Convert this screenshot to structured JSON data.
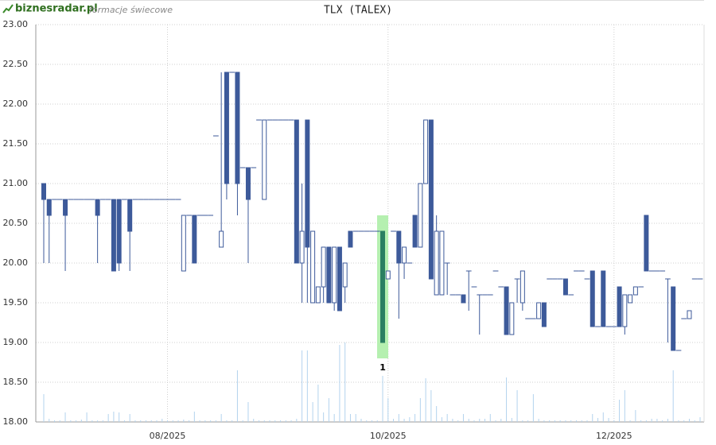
{
  "header": {
    "logo": "biznesradar.pl",
    "section": "formacje świecowe"
  },
  "chart_data": {
    "type": "candlestick",
    "title": "TLX (TALEX)",
    "ylim": [
      18,
      23
    ],
    "yticks": [
      {
        "value": 18,
        "label": "18.00"
      },
      {
        "value": 18.5,
        "label": "18.50"
      },
      {
        "value": 19,
        "label": "19.00"
      },
      {
        "value": 19.5,
        "label": "19.50"
      },
      {
        "value": 20,
        "label": "20.00"
      },
      {
        "value": 20.5,
        "label": "20.50"
      },
      {
        "value": 21,
        "label": "21.00"
      },
      {
        "value": 21.5,
        "label": "21.50"
      },
      {
        "value": 22,
        "label": "22.00"
      },
      {
        "value": 22.5,
        "label": "22.50"
      },
      {
        "value": 23,
        "label": "23.00"
      }
    ],
    "grid": true,
    "up_color": "#ffffff",
    "down_color": "#3d5a9a",
    "volume_color": "#b3d3ee",
    "categories": [
      null,
      null,
      null,
      null,
      null,
      null,
      null,
      null,
      null,
      null,
      null,
      null,
      null,
      null,
      null,
      null,
      null,
      null,
      null,
      null,
      null,
      null,
      null,
      "08/2025",
      null,
      null,
      null,
      null,
      null,
      null,
      null,
      null,
      null,
      null,
      null,
      null,
      null,
      null,
      null,
      null,
      null,
      null,
      null,
      null,
      null,
      null,
      null,
      null,
      null,
      null,
      null,
      null,
      null,
      null,
      null,
      null,
      null,
      null,
      null,
      null,
      null,
      null,
      null,
      null,
      "10/2025",
      null,
      null,
      null,
      null,
      null,
      null,
      null,
      null,
      null,
      null,
      null,
      null,
      null,
      null,
      null,
      null,
      null,
      null,
      null,
      null,
      null,
      null,
      null,
      null,
      null,
      null,
      null,
      null,
      null,
      null,
      null,
      null,
      null,
      null,
      null,
      null,
      null,
      null,
      null,
      null,
      null,
      "12/2025",
      null,
      null,
      null,
      null,
      null,
      null,
      null,
      null,
      null,
      null,
      null,
      null,
      null,
      null,
      null,
      null
    ],
    "values": [
      [
        21.0,
        21.0,
        20.0,
        20.8
      ],
      [
        20.8,
        20.8,
        20.0,
        20.6
      ],
      [
        20.8,
        20.8,
        20.8,
        20.8
      ],
      [
        20.8,
        20.8,
        20.8,
        20.8
      ],
      [
        20.8,
        20.8,
        19.9,
        20.6
      ],
      [
        20.8,
        20.8,
        20.8,
        20.8
      ],
      [
        20.8,
        20.8,
        20.8,
        20.8
      ],
      [
        20.8,
        20.8,
        20.8,
        20.8
      ],
      [
        20.8,
        20.8,
        20.8,
        20.8
      ],
      [
        20.8,
        20.8,
        20.8,
        20.8
      ],
      [
        20.8,
        20.8,
        20.0,
        20.6
      ],
      [
        20.8,
        20.8,
        20.8,
        20.8
      ],
      [
        20.8,
        20.8,
        20.8,
        20.8
      ],
      [
        20.8,
        20.8,
        19.9,
        19.9
      ],
      [
        20.8,
        20.8,
        19.9,
        20.0
      ],
      [
        20.8,
        20.8,
        20.8,
        20.8
      ],
      [
        20.8,
        20.8,
        19.9,
        20.4
      ],
      [
        20.8,
        20.8,
        20.8,
        20.8
      ],
      [
        20.8,
        20.8,
        20.8,
        20.8
      ],
      [
        20.8,
        20.8,
        20.8,
        20.8
      ],
      [
        20.8,
        20.8,
        20.8,
        20.8
      ],
      [
        20.8,
        20.8,
        20.8,
        20.8
      ],
      [
        20.8,
        20.8,
        20.8,
        20.8
      ],
      [
        20.8,
        20.8,
        20.8,
        20.8
      ],
      [
        20.8,
        20.8,
        20.8,
        20.8
      ],
      [
        20.8,
        20.8,
        20.8,
        20.8
      ],
      [
        19.9,
        20.6,
        19.9,
        20.6
      ],
      [
        20.6,
        20.6,
        20.6,
        20.6
      ],
      [
        20.6,
        20.6,
        20.0,
        20.0
      ],
      [
        20.6,
        20.6,
        20.6,
        20.6
      ],
      [
        20.6,
        20.6,
        20.6,
        20.6
      ],
      [
        20.6,
        20.6,
        20.6,
        20.6
      ],
      [
        21.6,
        21.6,
        21.6,
        21.6
      ],
      [
        20.2,
        22.4,
        20.2,
        20.4
      ],
      [
        22.4,
        22.4,
        20.8,
        21.0
      ],
      [
        22.4,
        22.4,
        22.4,
        22.4
      ],
      [
        22.4,
        22.4,
        20.6,
        21.0
      ],
      [
        21.2,
        21.2,
        21.2,
        21.2
      ],
      [
        21.2,
        21.2,
        20.0,
        20.8
      ],
      [
        21.2,
        21.2,
        21.2,
        21.2
      ],
      [
        21.8,
        21.8,
        21.8,
        21.8
      ],
      [
        20.8,
        21.8,
        20.8,
        21.8
      ],
      [
        21.8,
        21.8,
        21.8,
        21.8
      ],
      [
        21.8,
        21.8,
        21.8,
        21.8
      ],
      [
        21.8,
        21.8,
        21.8,
        21.8
      ],
      [
        21.8,
        21.8,
        21.8,
        21.8
      ],
      [
        21.8,
        21.8,
        21.8,
        21.8
      ],
      [
        21.8,
        21.8,
        20.0,
        20.0
      ],
      [
        20.0,
        21.0,
        19.5,
        20.4
      ],
      [
        21.8,
        21.8,
        19.5,
        20.2
      ],
      [
        19.5,
        20.4,
        19.5,
        20.4
      ],
      [
        19.5,
        19.7,
        19.5,
        19.7
      ],
      [
        19.7,
        20.2,
        19.5,
        20.2
      ],
      [
        20.2,
        20.2,
        19.5,
        19.5
      ],
      [
        19.5,
        20.2,
        19.4,
        20.2
      ],
      [
        20.2,
        20.2,
        19.4,
        19.4
      ],
      [
        19.7,
        20.0,
        19.5,
        20.0
      ],
      [
        20.4,
        20.4,
        20.2,
        20.2
      ],
      [
        20.4,
        20.4,
        20.4,
        20.4
      ],
      [
        20.4,
        20.4,
        20.4,
        20.4
      ],
      [
        20.4,
        20.4,
        20.4,
        20.4
      ],
      [
        20.4,
        20.4,
        20.4,
        20.4
      ],
      [
        20.4,
        20.4,
        20.4,
        20.4
      ],
      [
        20.4,
        20.4,
        19.0,
        19.0
      ],
      [
        19.8,
        19.9,
        19.8,
        19.9
      ],
      [
        20.4,
        20.4,
        20.4,
        20.4
      ],
      [
        20.4,
        20.4,
        19.3,
        20.0
      ],
      [
        20.0,
        20.2,
        19.8,
        20.2
      ],
      [
        20.0,
        20.0,
        20.0,
        20.0
      ],
      [
        20.6,
        20.6,
        20.2,
        20.2
      ],
      [
        20.2,
        21.0,
        20.2,
        21.0
      ],
      [
        21.0,
        21.8,
        21.0,
        21.8
      ],
      [
        21.8,
        21.8,
        19.8,
        19.8
      ],
      [
        19.6,
        20.6,
        19.6,
        20.4
      ],
      [
        19.6,
        20.4,
        19.6,
        20.4
      ],
      [
        20.0,
        20.0,
        19.6,
        20.0
      ],
      [
        19.6,
        19.6,
        19.6,
        19.6
      ],
      [
        19.6,
        19.6,
        19.6,
        19.6
      ],
      [
        19.6,
        19.6,
        19.5,
        19.5
      ],
      [
        19.9,
        19.9,
        19.4,
        19.9
      ],
      [
        19.7,
        19.7,
        19.7,
        19.7
      ],
      [
        19.6,
        19.6,
        19.1,
        19.6
      ],
      [
        19.6,
        19.6,
        19.6,
        19.6
      ],
      [
        19.6,
        19.6,
        19.6,
        19.6
      ],
      [
        19.9,
        19.9,
        19.9,
        19.9
      ],
      [
        19.7,
        19.7,
        19.7,
        19.7
      ],
      [
        19.7,
        19.7,
        19.1,
        19.1
      ],
      [
        19.1,
        19.5,
        19.1,
        19.5
      ],
      [
        19.8,
        19.8,
        19.5,
        19.8
      ],
      [
        19.5,
        19.9,
        19.4,
        19.9
      ],
      [
        19.3,
        19.3,
        19.3,
        19.3
      ],
      [
        19.3,
        19.3,
        19.3,
        19.3
      ],
      [
        19.3,
        19.5,
        19.3,
        19.5
      ],
      [
        19.5,
        19.5,
        19.2,
        19.2
      ],
      [
        19.8,
        19.8,
        19.8,
        19.8
      ],
      [
        19.8,
        19.8,
        19.8,
        19.8
      ],
      [
        19.8,
        19.8,
        19.8,
        19.8
      ],
      [
        19.8,
        19.8,
        19.6,
        19.6
      ],
      [
        19.6,
        19.6,
        19.6,
        19.6
      ],
      [
        19.9,
        19.9,
        19.9,
        19.9
      ],
      [
        19.9,
        19.9,
        19.9,
        19.9
      ],
      [
        19.8,
        19.8,
        19.8,
        19.8
      ],
      [
        19.9,
        19.9,
        19.2,
        19.2
      ],
      [
        19.2,
        19.2,
        19.2,
        19.2
      ],
      [
        19.9,
        19.9,
        19.2,
        19.2
      ],
      [
        19.2,
        19.2,
        19.2,
        19.2
      ],
      [
        19.2,
        19.2,
        19.2,
        19.2
      ],
      [
        19.7,
        19.7,
        19.2,
        19.2
      ],
      [
        19.2,
        19.6,
        19.1,
        19.6
      ],
      [
        19.5,
        19.6,
        19.5,
        19.6
      ],
      [
        19.6,
        19.7,
        19.6,
        19.7
      ],
      [
        19.7,
        19.7,
        19.7,
        19.7
      ],
      [
        20.6,
        20.6,
        19.9,
        19.9
      ],
      [
        19.9,
        19.9,
        19.9,
        19.9
      ],
      [
        19.9,
        19.9,
        19.9,
        19.9
      ],
      [
        19.9,
        19.9,
        19.9,
        19.9
      ],
      [
        19.8,
        19.8,
        19.0,
        19.8
      ],
      [
        19.7,
        19.7,
        18.9,
        18.9
      ],
      [
        18.9,
        18.9,
        18.9,
        18.9
      ],
      [
        19.3,
        19.3,
        19.3,
        19.3
      ],
      [
        19.3,
        19.4,
        19.3,
        19.4
      ],
      [
        19.8,
        19.8,
        19.8,
        19.8
      ],
      [
        19.8,
        19.8,
        19.8,
        19.8
      ]
    ],
    "volume": [
      18.35,
      18.04,
      18.02,
      18.02,
      18.12,
      18.02,
      18.02,
      18.03,
      18.12,
      18.02,
      18.02,
      18.02,
      18.1,
      18.13,
      18.12,
      18.02,
      18.1,
      18.02,
      18.02,
      18.02,
      18.02,
      18.02,
      18.04,
      18.02,
      18.02,
      18.02,
      18.03,
      18.02,
      18.13,
      18.02,
      18.02,
      18.02,
      18.02,
      18.1,
      18.02,
      18.02,
      18.65,
      18.02,
      18.25,
      18.04,
      18.02,
      18.02,
      18.02,
      18.02,
      18.02,
      18.02,
      18.02,
      18.04,
      18.9,
      18.9,
      18.25,
      18.47,
      18.12,
      18.3,
      18.1,
      18.97,
      19.0,
      18.1,
      18.1,
      18.04,
      18.02,
      18.02,
      18.02,
      18.58,
      18.3,
      18.04,
      18.1,
      18.04,
      18.06,
      18.1,
      18.3,
      18.55,
      18.4,
      18.2,
      18.06,
      18.1,
      18.04,
      18.02,
      18.1,
      18.04,
      18.02,
      18.04,
      18.04,
      18.1,
      18.02,
      18.04,
      18.56,
      18.05,
      18.4,
      18.02,
      18.02,
      18.35,
      18.04,
      18.02,
      18.02,
      18.02,
      18.02,
      18.02,
      18.02,
      18.02,
      18.02,
      18.02,
      18.1,
      18.05,
      18.12,
      18.05,
      18.02,
      18.28,
      18.4,
      18.02,
      18.15,
      18.02,
      18.02,
      18.04,
      18.04,
      18.02,
      18.04,
      18.65,
      18.02,
      18.02,
      18.04,
      18.02,
      18.06
    ],
    "patterns": [
      {
        "label": "1",
        "candle": 63,
        "color": "#b5f0b0",
        "candle_color": "#2a7f62"
      }
    ]
  }
}
